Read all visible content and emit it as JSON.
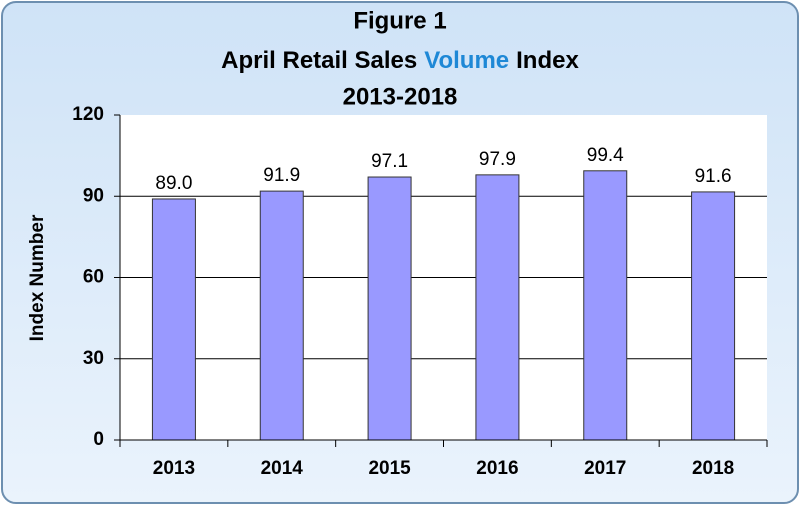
{
  "chart_data": {
    "type": "bar",
    "title": {
      "line1": "Figure 1",
      "line2": [
        "April Retail Sales",
        "Volume",
        "Index"
      ],
      "line3": "2013-2018"
    },
    "title_highlight_color": "#1e88d6",
    "y_label": "Index Number",
    "categories": [
      "2013",
      "2014",
      "2015",
      "2016",
      "2017",
      "2018"
    ],
    "values": [
      89.0,
      91.9,
      97.1,
      97.9,
      99.4,
      91.6
    ],
    "value_labels": [
      "89.0",
      "91.9",
      "97.1",
      "97.9",
      "99.4",
      "91.6"
    ],
    "color": "#9999ff",
    "ylim": [
      0,
      120
    ],
    "yticks": [
      0,
      30,
      60,
      90,
      120
    ],
    "grid": true
  }
}
